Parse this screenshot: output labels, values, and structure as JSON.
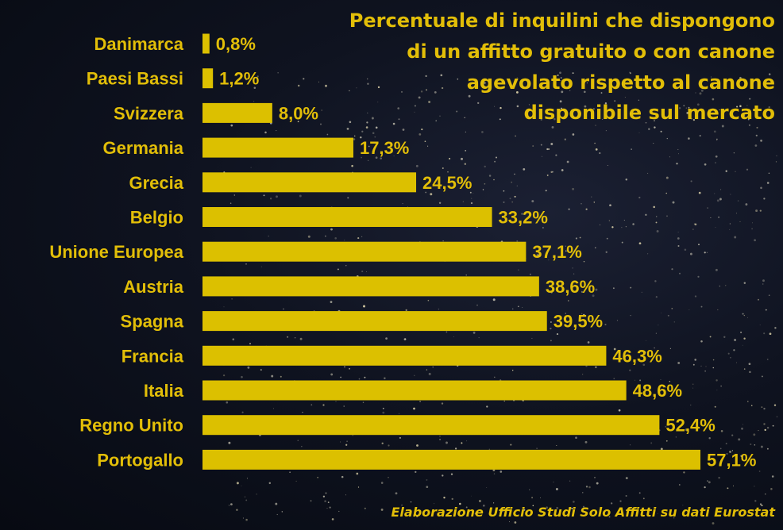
{
  "chart_data": {
    "type": "bar",
    "orientation": "horizontal",
    "title_lines": [
      "Percentuale di inquilini che dispongono",
      "di un affitto gratuito o con canone",
      "agevolato rispetto al canone",
      "disponibile sul mercato"
    ],
    "categories": [
      "Danimarca",
      "Paesi Bassi",
      "Svizzera",
      "Germania",
      "Grecia",
      "Belgio",
      "Unione Europea",
      "Austria",
      "Spagna",
      "Francia",
      "Italia",
      "Regno Unito",
      "Portogallo"
    ],
    "values": [
      0.8,
      1.2,
      8.0,
      17.3,
      24.5,
      33.2,
      37.1,
      38.6,
      39.5,
      46.3,
      48.6,
      52.4,
      57.1
    ],
    "value_labels": [
      "0,8%",
      "1,2%",
      "8,0%",
      "17,3%",
      "24,5%",
      "33,2%",
      "37,1%",
      "38,6%",
      "39,5%",
      "46,3%",
      "48,6%",
      "52,4%",
      "57,1%"
    ],
    "xlim": [
      0,
      57.1
    ],
    "grid": false,
    "bar_color": "#dcc000",
    "text_color": "#e2be08",
    "source": "Elaborazione Ufficio Studi Solo Affitti su dati Eurostat"
  }
}
